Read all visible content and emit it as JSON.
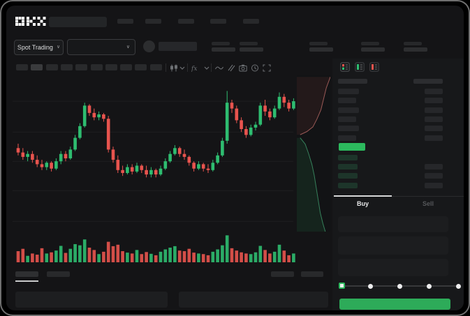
{
  "header": {
    "brand": "OKX",
    "market_selector": "Spot Trading",
    "nav_item_count": 5,
    "stat_pair_count": 5
  },
  "toolbar": {
    "timeframe_button_count": 10,
    "active_timeframe_index": 1
  },
  "chart_data": {
    "type": "candlestick",
    "title": "",
    "xlabel": "",
    "ylabel": "",
    "axis_labels_visible": false,
    "grid": true,
    "grid_levels": [
      89,
      68,
      48,
      28,
      7
    ],
    "price_range": [
      0,
      100
    ],
    "up_color": "#2ebd70",
    "down_color": "#e8544e",
    "candles": [
      [
        57,
        60,
        52,
        54
      ],
      [
        54,
        57,
        49,
        51
      ],
      [
        51,
        55,
        48,
        53
      ],
      [
        53,
        55,
        47,
        49
      ],
      [
        49,
        52,
        44,
        46
      ],
      [
        46,
        49,
        42,
        44
      ],
      [
        44,
        48,
        42,
        47
      ],
      [
        47,
        48,
        41,
        43
      ],
      [
        43,
        50,
        42,
        48
      ],
      [
        48,
        55,
        46,
        53
      ],
      [
        53,
        55,
        48,
        50
      ],
      [
        50,
        58,
        49,
        56
      ],
      [
        56,
        66,
        55,
        64
      ],
      [
        64,
        74,
        63,
        72
      ],
      [
        72,
        88,
        71,
        86
      ],
      [
        86,
        87,
        79,
        81
      ],
      [
        81,
        84,
        76,
        78
      ],
      [
        78,
        82,
        76,
        80
      ],
      [
        80,
        81,
        75,
        77
      ],
      [
        77,
        79,
        54,
        56
      ],
      [
        56,
        58,
        47,
        49
      ],
      [
        49,
        52,
        40,
        42
      ],
      [
        42,
        45,
        38,
        40
      ],
      [
        40,
        46,
        39,
        44
      ],
      [
        44,
        46,
        39,
        41
      ],
      [
        41,
        47,
        40,
        45
      ],
      [
        45,
        46,
        40,
        42
      ],
      [
        42,
        45,
        37,
        39
      ],
      [
        39,
        44,
        37,
        42
      ],
      [
        42,
        43,
        37,
        39
      ],
      [
        39,
        45,
        38,
        43
      ],
      [
        43,
        50,
        42,
        48
      ],
      [
        48,
        55,
        47,
        53
      ],
      [
        53,
        59,
        52,
        57
      ],
      [
        57,
        58,
        51,
        53
      ],
      [
        53,
        56,
        49,
        51
      ],
      [
        51,
        52,
        45,
        47
      ],
      [
        47,
        48,
        41,
        43
      ],
      [
        43,
        48,
        42,
        46
      ],
      [
        46,
        47,
        41,
        43
      ],
      [
        43,
        46,
        40,
        42
      ],
      [
        42,
        49,
        41,
        47
      ],
      [
        47,
        54,
        46,
        52
      ],
      [
        52,
        64,
        51,
        62
      ],
      [
        62,
        96,
        60,
        88
      ],
      [
        88,
        90,
        81,
        84
      ],
      [
        84,
        86,
        74,
        76
      ],
      [
        76,
        78,
        68,
        70
      ],
      [
        70,
        72,
        64,
        66
      ],
      [
        66,
        73,
        65,
        71
      ],
      [
        71,
        75,
        69,
        73
      ],
      [
        73,
        88,
        72,
        86
      ],
      [
        86,
        90,
        79,
        82
      ],
      [
        82,
        84,
        76,
        78
      ],
      [
        78,
        86,
        77,
        84
      ],
      [
        84,
        95,
        83,
        92
      ],
      [
        92,
        94,
        85,
        88
      ],
      [
        88,
        90,
        82,
        84
      ],
      [
        84,
        91,
        83,
        89
      ]
    ],
    "volume": [
      38,
      46,
      22,
      30,
      26,
      48,
      30,
      34,
      40,
      56,
      32,
      46,
      62,
      58,
      78,
      50,
      42,
      28,
      36,
      70,
      55,
      60,
      38,
      33,
      30,
      42,
      28,
      35,
      29,
      24,
      36,
      44,
      50,
      55,
      40,
      38,
      46,
      33,
      30,
      28,
      24,
      36,
      44,
      58,
      92,
      48,
      40,
      34,
      30,
      28,
      34,
      56,
      42,
      30,
      36,
      60,
      40,
      24,
      30
    ],
    "depth": {
      "ask_line": [
        [
          100,
          1
        ],
        [
          88,
          8
        ],
        [
          80,
          15
        ],
        [
          72,
          22
        ],
        [
          60,
          28
        ],
        [
          48,
          33
        ],
        [
          30,
          36
        ],
        [
          10,
          38
        ]
      ],
      "bid_line": [
        [
          10,
          40
        ],
        [
          25,
          44
        ],
        [
          35,
          50
        ],
        [
          45,
          57
        ],
        [
          52,
          64
        ],
        [
          58,
          72
        ],
        [
          64,
          80
        ],
        [
          70,
          88
        ],
        [
          78,
          95
        ],
        [
          85,
          100
        ]
      ],
      "ask_color": "#b96a66",
      "bid_color": "#3f9a6c"
    }
  },
  "orderbook": {
    "view_icons": [
      "combined-book-icon",
      "bids-book-icon",
      "asks-book-icon"
    ],
    "ask_row_count": 6,
    "bid_row_count": 4,
    "bid_rows_with_amount": [
      1,
      2,
      3
    ],
    "mid_price_color": "#2cb95d"
  },
  "trade": {
    "tabs": [
      {
        "label": "Buy",
        "active": true
      },
      {
        "label": "Sell",
        "active": false
      }
    ],
    "field_count": 3,
    "slider": {
      "stops": 5,
      "active_index": 0,
      "accent": "#2cb95d"
    },
    "submit_color": "#2dab59"
  },
  "bottom_panel": {
    "tab_count": 2,
    "active_tab_index": 0,
    "right_control_count": 2,
    "card_count": 2
  }
}
